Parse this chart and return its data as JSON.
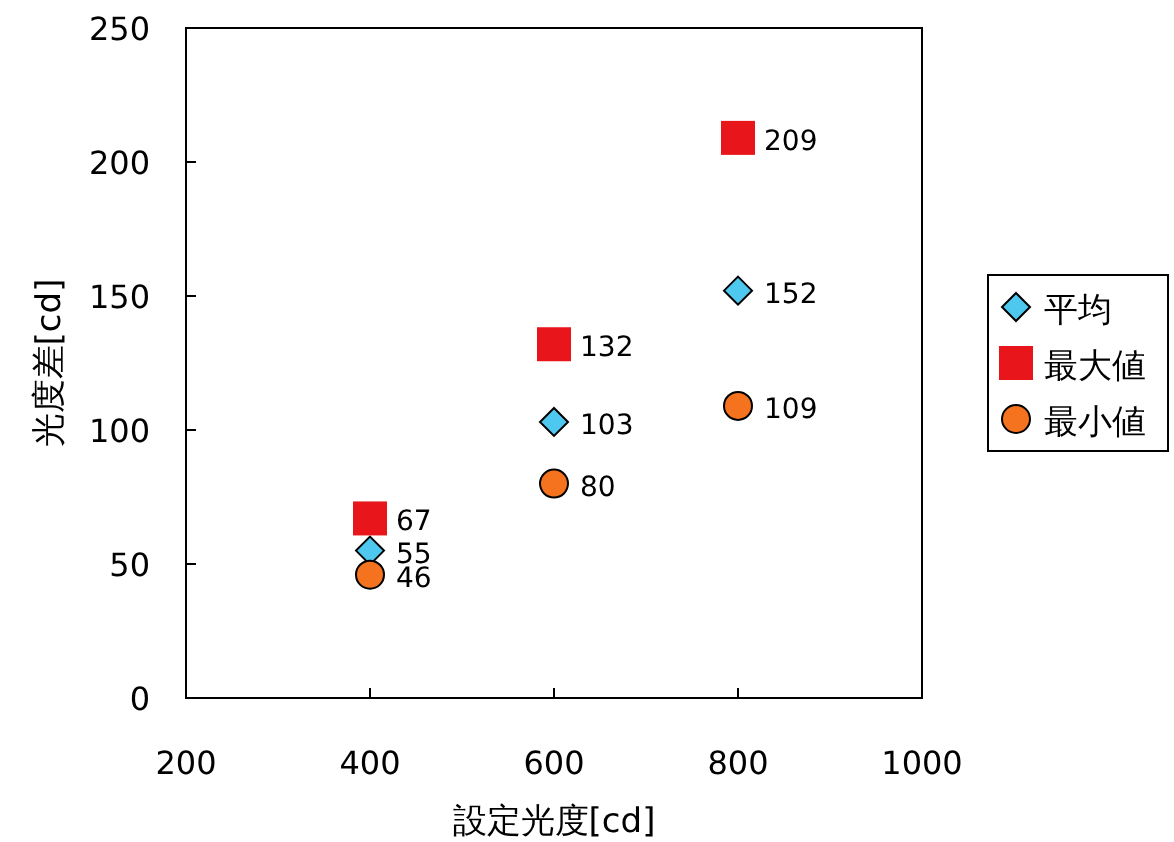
{
  "chart_data": {
    "type": "scatter",
    "xlabel": "設定光度[cd]",
    "ylabel": "光度差[cd]",
    "x": [
      400,
      600,
      800
    ],
    "series": [
      {
        "name": "平均",
        "color": "#4fc8f0",
        "marker": "diamond",
        "values": [
          55,
          103,
          152
        ]
      },
      {
        "name": "最大値",
        "color": "#e8161b",
        "marker": "square",
        "values": [
          67,
          132,
          209
        ]
      },
      {
        "name": "最小値",
        "color": "#f5731e",
        "marker": "circle",
        "values": [
          46,
          80,
          109
        ]
      }
    ],
    "xlim": [
      200,
      1000
    ],
    "xticks": [
      200,
      400,
      600,
      800,
      1000
    ],
    "ylim": [
      0,
      250
    ],
    "yticks": [
      0,
      50,
      100,
      150,
      200,
      250
    ],
    "data_labels": true,
    "legend": "right"
  }
}
